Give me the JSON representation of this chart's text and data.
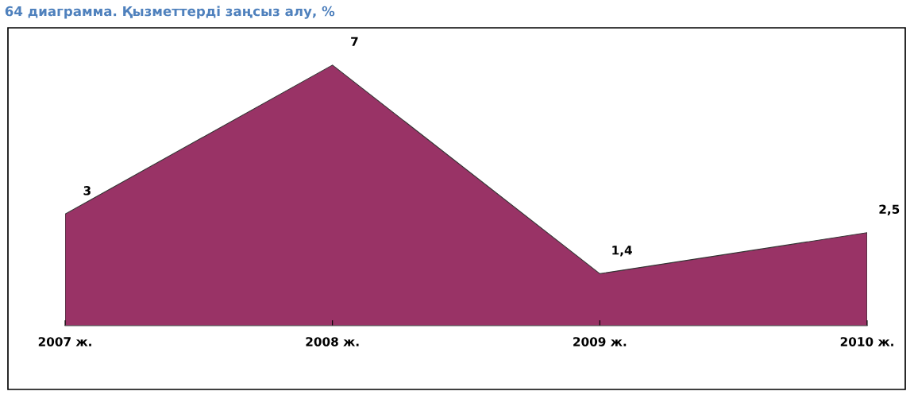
{
  "chart_data": {
    "type": "area",
    "title": "64 диаграмма. Қызметтерді заңсыз алу, %",
    "categories": [
      "2007 ж.",
      "2008 ж.",
      "2009 ж.",
      "2010 ж."
    ],
    "values": [
      3,
      7,
      1.4,
      2.5
    ],
    "value_labels": [
      "3",
      "7",
      "1,4",
      "2,5"
    ],
    "color": "#993366",
    "ylim": [
      0,
      8
    ],
    "tick_labels": "x",
    "grid": false
  }
}
